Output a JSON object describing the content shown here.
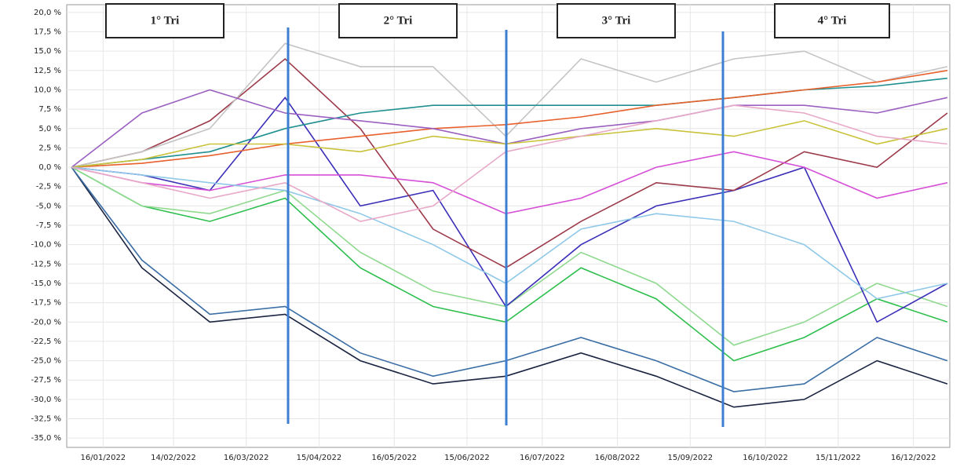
{
  "chart_data": {
    "type": "line",
    "annotations": [
      "1° Tri",
      "2° Tri",
      "3° Tri",
      "4° Tri"
    ],
    "x": [
      "03/01/2022",
      "01/02/2022",
      "01/03/2022",
      "01/04/2022",
      "02/05/2022",
      "01/06/2022",
      "01/07/2022",
      "01/08/2022",
      "01/09/2022",
      "03/10/2022",
      "01/11/2022",
      "01/12/2022",
      "30/12/2022"
    ],
    "xlim": [
      "01/01/2022",
      "31/12/2022"
    ],
    "xticks": [
      "16/01/2022",
      "14/02/2022",
      "16/03/2022",
      "15/04/2022",
      "16/05/2022",
      "15/06/2022",
      "16/07/2022",
      "16/08/2022",
      "15/09/2022",
      "16/10/2022",
      "15/11/2022",
      "16/12/2022"
    ],
    "ylim": [
      -36.2,
      21
    ],
    "yticks": [
      {
        "value": 20,
        "label": "20,0 %"
      },
      {
        "value": 17.5,
        "label": "17,5 %"
      },
      {
        "value": 15,
        "label": "15,0 %"
      },
      {
        "value": 12.5,
        "label": "12,5 %"
      },
      {
        "value": 10,
        "label": "10,0 %"
      },
      {
        "value": 7.5,
        "label": "7,5 %"
      },
      {
        "value": 5,
        "label": "5,0 %"
      },
      {
        "value": 2.5,
        "label": "2,5 %"
      },
      {
        "value": 0,
        "label": "0,0 %"
      },
      {
        "value": -2.5,
        "label": "-2,5 %"
      },
      {
        "value": -5,
        "label": "-5,0 %"
      },
      {
        "value": -7.5,
        "label": "-7,5 %"
      },
      {
        "value": -10,
        "label": "-10,0 %"
      },
      {
        "value": -12.5,
        "label": "-12,5 %"
      },
      {
        "value": -15,
        "label": "-15,0 %"
      },
      {
        "value": -17.5,
        "label": "-17,5 %"
      },
      {
        "value": -20,
        "label": "-20,0 %"
      },
      {
        "value": -22.5,
        "label": "-22,5 %"
      },
      {
        "value": -25,
        "label": "-25,0 %"
      },
      {
        "value": -27.5,
        "label": "-27,5 %"
      },
      {
        "value": -30,
        "label": "-30,0 %"
      },
      {
        "value": -32.5,
        "label": "-32,5 %"
      },
      {
        "value": -35,
        "label": "-35,0 %"
      }
    ],
    "grid": true,
    "series": [
      {
        "color": "#1a2340",
        "values": [
          0,
          -13,
          -20,
          -19,
          -25,
          -28,
          -27,
          -24,
          -27,
          -31,
          -30,
          -25,
          -28
        ]
      },
      {
        "color": "#3a6ea5",
        "values": [
          0,
          -12,
          -19,
          -18,
          -24,
          -27,
          -25,
          -22,
          -25,
          -29,
          -28,
          -22,
          -25
        ]
      },
      {
        "color": "#2fbf4f",
        "values": [
          0,
          -5,
          -7,
          -4,
          -13,
          -18,
          -20,
          -13,
          -17,
          -25,
          -22,
          -17,
          -20
        ]
      },
      {
        "color": "#8fd98f",
        "values": [
          0,
          -5,
          -6,
          -3,
          -11,
          -16,
          -18,
          -11,
          -15,
          -23,
          -20,
          -15,
          -18
        ]
      },
      {
        "color": "#3b2fb8",
        "values": [
          0,
          -1,
          -3,
          9,
          -5,
          -3,
          -18,
          -10,
          -5,
          -3,
          0,
          -20,
          -15
        ]
      },
      {
        "color": "#9c3a4a",
        "values": [
          0,
          2,
          6,
          14,
          5,
          -8,
          -13,
          -7,
          -2,
          -3,
          2,
          0,
          7
        ]
      },
      {
        "color": "#d64fd6",
        "values": [
          0,
          -2,
          -3,
          -1,
          -1,
          -2,
          -6,
          -4,
          0,
          2,
          0,
          -4,
          -2
        ]
      },
      {
        "color": "#c4c4c4",
        "values": [
          0,
          2,
          5,
          16,
          13,
          13,
          4,
          14,
          11,
          14,
          15,
          11,
          13
        ]
      },
      {
        "color": "#1f8f8f",
        "values": [
          0,
          1,
          2,
          5,
          7,
          8,
          8,
          8,
          8,
          9,
          10,
          10.5,
          11.5
        ]
      },
      {
        "color": "#e8602c",
        "values": [
          0,
          0.5,
          1.5,
          3,
          4,
          5,
          5.5,
          6.5,
          8,
          9,
          10,
          11,
          12.5
        ]
      },
      {
        "color": "#9a5fc0",
        "values": [
          0,
          7,
          10,
          7,
          6,
          5,
          3,
          5,
          6,
          8,
          8,
          7,
          9
        ]
      },
      {
        "color": "#c9c23a",
        "values": [
          0,
          1,
          3,
          3,
          2,
          4,
          3,
          4,
          5,
          4,
          6,
          3,
          5
        ]
      },
      {
        "color": "#8fc8e8",
        "values": [
          0,
          -1,
          -2,
          -3,
          -6,
          -10,
          -15,
          -8,
          -6,
          -7,
          -10,
          -17,
          -15
        ]
      },
      {
        "color": "#e8a8c8",
        "values": [
          0,
          -2,
          -4,
          -2,
          -7,
          -5,
          2,
          4,
          6,
          8,
          7,
          4,
          3
        ]
      }
    ]
  }
}
